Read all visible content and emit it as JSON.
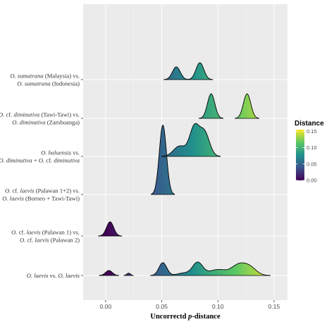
{
  "chart_data": {
    "type": "ridgeline",
    "xlabel_parts": [
      {
        "text": "Uncorrectd ",
        "italic": false
      },
      {
        "text": "p",
        "italic": true
      },
      {
        "text": "-distance",
        "italic": false
      }
    ],
    "xlim": [
      -0.02,
      0.162
    ],
    "xticks": [
      {
        "value": 0.0,
        "label": "0.00"
      },
      {
        "value": 0.05,
        "label": "0.05"
      },
      {
        "value": 0.1,
        "label": "0.10"
      },
      {
        "value": 0.15,
        "label": "0.15"
      }
    ],
    "legend": {
      "title": "Distance",
      "min": 0.0,
      "max": 0.155,
      "ticks": [
        {
          "value": 0.0,
          "label": "0.00"
        },
        {
          "value": 0.05,
          "label": "0.05"
        },
        {
          "value": 0.1,
          "label": "0.10"
        },
        {
          "value": 0.15,
          "label": "0.15"
        }
      ],
      "colors": [
        "#440154",
        "#3b528b",
        "#21908c",
        "#5dc863",
        "#fde725"
      ]
    },
    "rows": [
      {
        "id": "laevis-laevis",
        "lines": [
          [
            {
              "text": "O. laevis",
              "italic": true
            },
            {
              "text": " vs. ",
              "italic": false
            },
            {
              "text": "O. laevis",
              "italic": true
            }
          ]
        ],
        "height_scale": 0.8,
        "components": [
          {
            "mu": 0.003,
            "sd": 0.003,
            "w": 0.012
          },
          {
            "mu": 0.0205,
            "sd": 0.0016,
            "w": 0.003
          },
          {
            "mu": 0.051,
            "sd": 0.0035,
            "w": 0.036
          },
          {
            "mu": 0.07,
            "sd": 0.006,
            "w": 0.012
          },
          {
            "mu": 0.082,
            "sd": 0.0045,
            "w": 0.046
          },
          {
            "mu": 0.1,
            "sd": 0.008,
            "w": 0.038
          },
          {
            "mu": 0.118,
            "sd": 0.006,
            "w": 0.045
          },
          {
            "mu": 0.128,
            "sd": 0.006,
            "w": 0.04
          }
        ]
      },
      {
        "id": "palawan1-palawan2",
        "lines": [
          [
            {
              "text": "O.",
              "italic": true
            },
            {
              "text": " cf. ",
              "italic": false
            },
            {
              "text": "laevis",
              "italic": true
            },
            {
              "text": " (Palawan 1) vs.",
              "italic": false
            }
          ],
          [
            {
              "text": "O.",
              "italic": true
            },
            {
              "text": " cf. ",
              "italic": false
            },
            {
              "text": "laevis",
              "italic": true
            },
            {
              "text": " (Palawan 2)",
              "italic": false
            }
          ]
        ],
        "height_scale": 0.84,
        "components": [
          {
            "mu": 0.004,
            "sd": 0.0032,
            "w": 1.0
          }
        ]
      },
      {
        "id": "palawan12-borneo",
        "lines": [
          [
            {
              "text": "O.",
              "italic": true
            },
            {
              "text": " cf. ",
              "italic": false
            },
            {
              "text": "laevis",
              "italic": true
            },
            {
              "text": " (Palawan 1+2) vs.",
              "italic": false
            }
          ],
          [
            {
              "text": "O. laevis",
              "italic": true
            },
            {
              "text": " (Borneo + Tawi-Tawi)",
              "italic": false
            }
          ]
        ],
        "height_scale": 4.1,
        "components": [
          {
            "mu": 0.051,
            "sd": 0.0032,
            "w": 1.0
          }
        ]
      },
      {
        "id": "balu-diminutiva",
        "lines": [
          [
            {
              "text": "O. baluensis",
              "italic": true
            },
            {
              "text": " vs.",
              "italic": false
            }
          ],
          [
            {
              "text": "O. diminutiva",
              "italic": true
            },
            {
              "text": " + ",
              "italic": false
            },
            {
              "text": "O.",
              "italic": true
            },
            {
              "text": " cf. ",
              "italic": false
            },
            {
              "text": "diminutiva",
              "italic": true
            }
          ]
        ],
        "height_scale": 1.95,
        "components": [
          {
            "mu": 0.066,
            "sd": 0.0055,
            "w": 0.2
          },
          {
            "mu": 0.079,
            "sd": 0.0042,
            "w": 0.42
          },
          {
            "mu": 0.088,
            "sd": 0.0045,
            "w": 0.38
          }
        ]
      },
      {
        "id": "tawi-zamboanga",
        "lines": [
          [
            {
              "text": "O.",
              "italic": true
            },
            {
              "text": " cf. ",
              "italic": false
            },
            {
              "text": "diminutiva",
              "italic": true
            },
            {
              "text": " (Tawi-Tawi) vs.",
              "italic": false
            }
          ],
          [
            {
              "text": "O. diminutiva",
              "italic": true
            },
            {
              "text": " (Zamboanga)",
              "italic": false
            }
          ]
        ],
        "height_scale": 1.45,
        "components": [
          {
            "mu": 0.094,
            "sd": 0.0033,
            "w": 0.5
          },
          {
            "mu": 0.126,
            "sd": 0.0033,
            "w": 0.5
          }
        ]
      },
      {
        "id": "malaysia-indonesia",
        "lines": [
          [
            {
              "text": "O. sumatrana",
              "italic": true
            },
            {
              "text": " (Malaysia) vs.",
              "italic": false
            }
          ],
          [
            {
              "text": "O. sumatrana",
              "italic": true
            },
            {
              "text": " (Indonesia)",
              "italic": false
            }
          ]
        ],
        "height_scale": 1.0,
        "components": [
          {
            "mu": 0.063,
            "sd": 0.0035,
            "w": 0.43
          },
          {
            "mu": 0.084,
            "sd": 0.0035,
            "w": 0.57
          }
        ]
      }
    ]
  }
}
